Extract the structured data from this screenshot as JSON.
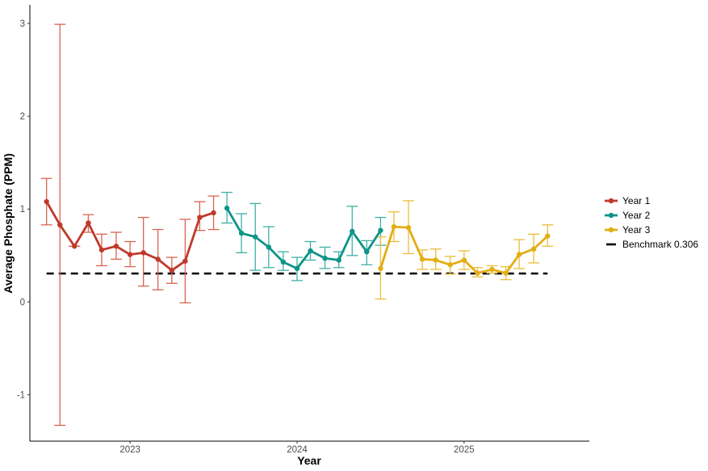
{
  "chart_data": {
    "type": "line",
    "title": "",
    "xlabel": "Year",
    "ylabel": "Average Phosphate (PPM)",
    "xlim": [
      2022.4,
      2025.75
    ],
    "ylim": [
      -1.5,
      3.2
    ],
    "x_ticks": [
      2023,
      2024,
      2025
    ],
    "x_tick_labels": [
      "2023",
      "2024",
      "2025"
    ],
    "y_ticks": [
      -1,
      0,
      1,
      2,
      3
    ],
    "y_tick_labels": [
      "-1",
      "0",
      "1",
      "2",
      "3"
    ],
    "grid": false,
    "legend_position": "right",
    "benchmark": {
      "label": "Benchmark 0.306",
      "value": 0.306,
      "x_range": [
        2022.5,
        2025.5
      ],
      "color": "#000000"
    },
    "series": [
      {
        "name": "Year 1",
        "color": "#C0392B",
        "errorbar_color": "#DA6450",
        "points": [
          {
            "x": 2022.5,
            "y": 1.08,
            "ymin": 0.83,
            "ymax": 1.33
          },
          {
            "x": 2022.58,
            "y": 0.83,
            "ymin": -1.33,
            "ymax": 2.99
          },
          {
            "x": 2022.667,
            "y": 0.6,
            "ymin": 0.6,
            "ymax": 0.6
          },
          {
            "x": 2022.75,
            "y": 0.85,
            "ymin": 0.75,
            "ymax": 0.94
          },
          {
            "x": 2022.83,
            "y": 0.56,
            "ymin": 0.39,
            "ymax": 0.73
          },
          {
            "x": 2022.917,
            "y": 0.6,
            "ymin": 0.46,
            "ymax": 0.75
          },
          {
            "x": 2023.0,
            "y": 0.51,
            "ymin": 0.38,
            "ymax": 0.65
          },
          {
            "x": 2023.08,
            "y": 0.53,
            "ymin": 0.17,
            "ymax": 0.91
          },
          {
            "x": 2023.167,
            "y": 0.46,
            "ymin": 0.13,
            "ymax": 0.78
          },
          {
            "x": 2023.25,
            "y": 0.34,
            "ymin": 0.2,
            "ymax": 0.48
          },
          {
            "x": 2023.33,
            "y": 0.44,
            "ymin": -0.01,
            "ymax": 0.89
          },
          {
            "x": 2023.417,
            "y": 0.91,
            "ymin": 0.77,
            "ymax": 1.08
          },
          {
            "x": 2023.5,
            "y": 0.96,
            "ymin": 0.78,
            "ymax": 1.14
          }
        ]
      },
      {
        "name": "Year 2",
        "color": "#0E9488",
        "errorbar_color": "#3FB1A6",
        "points": [
          {
            "x": 2023.58,
            "y": 1.01,
            "ymin": 0.85,
            "ymax": 1.18
          },
          {
            "x": 2023.667,
            "y": 0.74,
            "ymin": 0.53,
            "ymax": 0.95
          },
          {
            "x": 2023.75,
            "y": 0.7,
            "ymin": 0.34,
            "ymax": 1.06
          },
          {
            "x": 2023.83,
            "y": 0.59,
            "ymin": 0.37,
            "ymax": 0.81
          },
          {
            "x": 2023.917,
            "y": 0.43,
            "ymin": 0.34,
            "ymax": 0.54
          },
          {
            "x": 2024.0,
            "y": 0.36,
            "ymin": 0.23,
            "ymax": 0.48
          },
          {
            "x": 2024.08,
            "y": 0.55,
            "ymin": 0.45,
            "ymax": 0.65
          },
          {
            "x": 2024.167,
            "y": 0.47,
            "ymin": 0.36,
            "ymax": 0.59
          },
          {
            "x": 2024.25,
            "y": 0.45,
            "ymin": 0.37,
            "ymax": 0.54
          },
          {
            "x": 2024.33,
            "y": 0.76,
            "ymin": 0.5,
            "ymax": 1.03
          },
          {
            "x": 2024.417,
            "y": 0.54,
            "ymin": 0.4,
            "ymax": 0.66
          },
          {
            "x": 2024.5,
            "y": 0.77,
            "ymin": 0.61,
            "ymax": 0.91
          }
        ]
      },
      {
        "name": "Year 3",
        "color": "#E3AD14",
        "errorbar_color": "#EBBD3A",
        "points": [
          {
            "x": 2024.5,
            "y": 0.36,
            "ymin": 0.03,
            "ymax": 0.7
          },
          {
            "x": 2024.58,
            "y": 0.81,
            "ymin": 0.65,
            "ymax": 0.97
          },
          {
            "x": 2024.667,
            "y": 0.8,
            "ymin": 0.52,
            "ymax": 1.09
          },
          {
            "x": 2024.75,
            "y": 0.46,
            "ymin": 0.35,
            "ymax": 0.56
          },
          {
            "x": 2024.83,
            "y": 0.45,
            "ymin": 0.35,
            "ymax": 0.57
          },
          {
            "x": 2024.917,
            "y": 0.4,
            "ymin": 0.3,
            "ymax": 0.49
          },
          {
            "x": 2025.0,
            "y": 0.45,
            "ymin": 0.35,
            "ymax": 0.55
          },
          {
            "x": 2025.08,
            "y": 0.31,
            "ymin": 0.27,
            "ymax": 0.37
          },
          {
            "x": 2025.167,
            "y": 0.35,
            "ymin": 0.31,
            "ymax": 0.39
          },
          {
            "x": 2025.25,
            "y": 0.31,
            "ymin": 0.24,
            "ymax": 0.38
          },
          {
            "x": 2025.33,
            "y": 0.51,
            "ymin": 0.36,
            "ymax": 0.67
          },
          {
            "x": 2025.417,
            "y": 0.57,
            "ymin": 0.42,
            "ymax": 0.73
          },
          {
            "x": 2025.5,
            "y": 0.71,
            "ymin": 0.6,
            "ymax": 0.83
          }
        ]
      }
    ]
  }
}
